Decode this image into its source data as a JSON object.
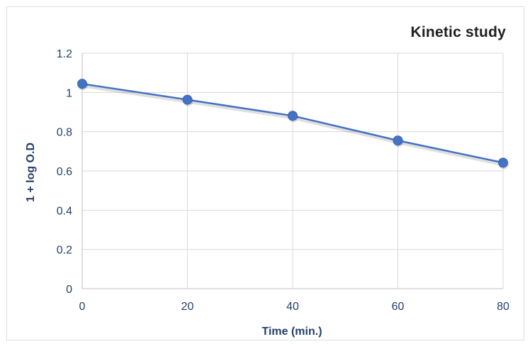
{
  "chart_data": {
    "type": "line",
    "title": "Kinetic study",
    "xlabel": "Time (min.)",
    "ylabel": "1 + log O.D",
    "x": [
      0,
      20,
      40,
      60,
      80
    ],
    "series": [
      {
        "values": [
          1.044,
          0.963,
          0.881,
          0.755,
          0.642
        ],
        "color": "#4472c4"
      }
    ],
    "xlim": [
      0,
      80
    ],
    "ylim": [
      0,
      1.2
    ],
    "x_ticks": [
      "0",
      "20",
      "40",
      "60",
      "80"
    ],
    "y_ticks": [
      "0",
      "0.2",
      "0.4",
      "0.6",
      "0.8",
      "1",
      "1.2"
    ],
    "grid": true,
    "legend": "none"
  }
}
